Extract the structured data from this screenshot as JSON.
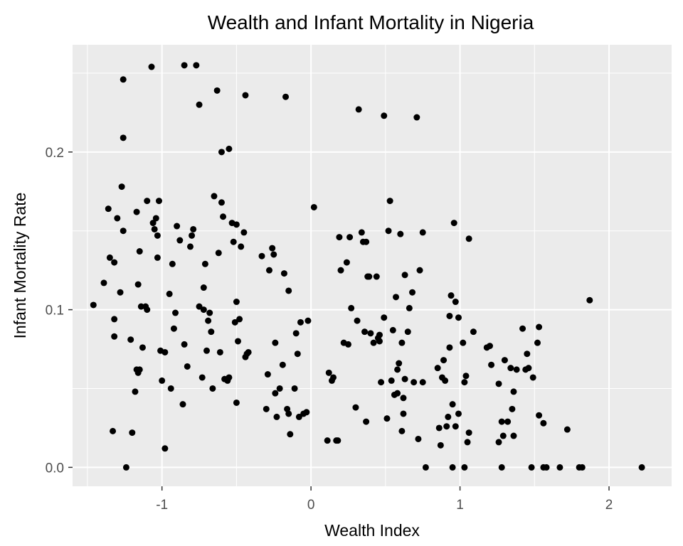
{
  "chart_data": {
    "type": "scatter",
    "title": "Wealth and Infant Mortality in Nigeria",
    "xlabel": "Wealth Index",
    "ylabel": "Infant Mortality Rate",
    "xlim": [
      -1.6,
      2.42
    ],
    "ylim": [
      -0.012,
      0.268
    ],
    "x_ticks": [
      -1,
      0,
      1,
      2
    ],
    "x_tick_labels": [
      "-1",
      "0",
      "1",
      "2"
    ],
    "y_ticks": [
      0.0,
      0.1,
      0.2
    ],
    "y_tick_labels": [
      "0.0",
      "0.1",
      "0.2"
    ],
    "grid": true,
    "background": "#ebebeb",
    "grid_color": "#ffffff",
    "point_color": "#000000",
    "points": [
      [
        -1.46,
        0.103
      ],
      [
        -1.39,
        0.117
      ],
      [
        -1.36,
        0.164
      ],
      [
        -1.35,
        0.133
      ],
      [
        -1.32,
        0.13
      ],
      [
        -1.3,
        0.158
      ],
      [
        -1.28,
        0.111
      ],
      [
        -1.27,
        0.178
      ],
      [
        -1.26,
        0.15
      ],
      [
        -1.26,
        0.209
      ],
      [
        -1.26,
        0.246
      ],
      [
        -1.24,
        0.0
      ],
      [
        -1.21,
        0.081
      ],
      [
        -1.2,
        0.022
      ],
      [
        -1.32,
        0.083
      ],
      [
        -1.32,
        0.094
      ],
      [
        -1.33,
        0.023
      ],
      [
        -1.17,
        0.162
      ],
      [
        -1.16,
        0.116
      ],
      [
        -1.15,
        0.137
      ],
      [
        -1.14,
        0.102
      ],
      [
        -1.13,
        0.076
      ],
      [
        -1.1,
        0.1
      ],
      [
        -1.11,
        0.102
      ],
      [
        -1.1,
        0.169
      ],
      [
        -1.18,
        0.048
      ],
      [
        -1.17,
        0.062
      ],
      [
        -1.16,
        0.06
      ],
      [
        -1.15,
        0.062
      ],
      [
        -1.07,
        0.254
      ],
      [
        -1.06,
        0.155
      ],
      [
        -1.05,
        0.151
      ],
      [
        -1.04,
        0.158
      ],
      [
        -1.03,
        0.147
      ],
      [
        -1.02,
        0.169
      ],
      [
        -1.03,
        0.133
      ],
      [
        -1.01,
        0.074
      ],
      [
        -1.0,
        0.055
      ],
      [
        -0.98,
        0.073
      ],
      [
        -0.98,
        0.012
      ],
      [
        -0.95,
        0.11
      ],
      [
        -0.94,
        0.05
      ],
      [
        -0.93,
        0.129
      ],
      [
        -0.92,
        0.088
      ],
      [
        -0.91,
        0.098
      ],
      [
        -0.9,
        0.153
      ],
      [
        -0.88,
        0.144
      ],
      [
        -0.86,
        0.04
      ],
      [
        -0.85,
        0.078
      ],
      [
        -0.85,
        0.255
      ],
      [
        -0.83,
        0.064
      ],
      [
        -0.81,
        0.14
      ],
      [
        -0.8,
        0.147
      ],
      [
        -0.79,
        0.151
      ],
      [
        -0.77,
        0.255
      ],
      [
        -0.75,
        0.102
      ],
      [
        -0.75,
        0.23
      ],
      [
        -0.73,
        0.057
      ],
      [
        -0.72,
        0.1
      ],
      [
        -0.72,
        0.114
      ],
      [
        -0.71,
        0.129
      ],
      [
        -0.7,
        0.074
      ],
      [
        -0.69,
        0.093
      ],
      [
        -0.68,
        0.098
      ],
      [
        -0.67,
        0.086
      ],
      [
        -0.66,
        0.05
      ],
      [
        -0.65,
        0.172
      ],
      [
        -0.63,
        0.239
      ],
      [
        -0.62,
        0.136
      ],
      [
        -0.61,
        0.073
      ],
      [
        -0.6,
        0.168
      ],
      [
        -0.6,
        0.2
      ],
      [
        -0.59,
        0.159
      ],
      [
        -0.58,
        0.056
      ],
      [
        -0.56,
        0.055
      ],
      [
        -0.55,
        0.057
      ],
      [
        -0.55,
        0.202
      ],
      [
        -0.53,
        0.155
      ],
      [
        -0.52,
        0.143
      ],
      [
        -0.51,
        0.092
      ],
      [
        -0.5,
        0.105
      ],
      [
        -0.5,
        0.041
      ],
      [
        -0.5,
        0.154
      ],
      [
        -0.49,
        0.08
      ],
      [
        -0.48,
        0.094
      ],
      [
        -0.47,
        0.14
      ],
      [
        -0.45,
        0.149
      ],
      [
        -0.44,
        0.236
      ],
      [
        -0.44,
        0.07
      ],
      [
        -0.43,
        0.072
      ],
      [
        -0.42,
        0.073
      ],
      [
        -0.33,
        0.134
      ],
      [
        -0.3,
        0.037
      ],
      [
        -0.29,
        0.059
      ],
      [
        -0.28,
        0.125
      ],
      [
        -0.26,
        0.139
      ],
      [
        -0.25,
        0.135
      ],
      [
        -0.24,
        0.047
      ],
      [
        -0.24,
        0.079
      ],
      [
        -0.23,
        0.032
      ],
      [
        -0.21,
        0.05
      ],
      [
        -0.19,
        0.065
      ],
      [
        -0.18,
        0.123
      ],
      [
        -0.16,
        0.037
      ],
      [
        -0.15,
        0.112
      ],
      [
        -0.15,
        0.034
      ],
      [
        -0.14,
        0.021
      ],
      [
        -0.11,
        0.05
      ],
      [
        -0.1,
        0.085
      ],
      [
        -0.09,
        0.072
      ],
      [
        -0.08,
        0.032
      ],
      [
        -0.07,
        0.092
      ],
      [
        -0.05,
        0.034
      ],
      [
        -0.03,
        0.035
      ],
      [
        -0.02,
        0.093
      ],
      [
        -0.17,
        0.235
      ],
      [
        0.02,
        0.165
      ],
      [
        0.11,
        0.017
      ],
      [
        0.12,
        0.06
      ],
      [
        0.14,
        0.055
      ],
      [
        0.15,
        0.057
      ],
      [
        0.17,
        0.017
      ],
      [
        0.18,
        0.017
      ],
      [
        0.19,
        0.146
      ],
      [
        0.2,
        0.125
      ],
      [
        0.22,
        0.079
      ],
      [
        0.24,
        0.13
      ],
      [
        0.25,
        0.078
      ],
      [
        0.26,
        0.146
      ],
      [
        0.27,
        0.101
      ],
      [
        0.3,
        0.038
      ],
      [
        0.31,
        0.093
      ],
      [
        0.32,
        0.227
      ],
      [
        0.34,
        0.149
      ],
      [
        0.35,
        0.143
      ],
      [
        0.36,
        0.086
      ],
      [
        0.37,
        0.143
      ],
      [
        0.37,
        0.029
      ],
      [
        0.38,
        0.121
      ],
      [
        0.39,
        0.121
      ],
      [
        0.4,
        0.085
      ],
      [
        0.42,
        0.079
      ],
      [
        0.44,
        0.121
      ],
      [
        0.45,
        0.082
      ],
      [
        0.46,
        0.08
      ],
      [
        0.46,
        0.084
      ],
      [
        0.47,
        0.054
      ],
      [
        0.49,
        0.095
      ],
      [
        0.49,
        0.223
      ],
      [
        0.51,
        0.031
      ],
      [
        0.52,
        0.15
      ],
      [
        0.53,
        0.169
      ],
      [
        0.54,
        0.055
      ],
      [
        0.55,
        0.087
      ],
      [
        0.56,
        0.046
      ],
      [
        0.57,
        0.108
      ],
      [
        0.58,
        0.047
      ],
      [
        0.58,
        0.062
      ],
      [
        0.59,
        0.066
      ],
      [
        0.6,
        0.148
      ],
      [
        0.61,
        0.023
      ],
      [
        0.61,
        0.079
      ],
      [
        0.62,
        0.044
      ],
      [
        0.62,
        0.034
      ],
      [
        0.63,
        0.122
      ],
      [
        0.63,
        0.056
      ],
      [
        0.65,
        0.086
      ],
      [
        0.66,
        0.101
      ],
      [
        0.68,
        0.111
      ],
      [
        0.69,
        0.054
      ],
      [
        0.71,
        0.222
      ],
      [
        0.72,
        0.018
      ],
      [
        0.73,
        0.125
      ],
      [
        0.75,
        0.054
      ],
      [
        0.75,
        0.149
      ],
      [
        0.77,
        0.0
      ],
      [
        0.85,
        0.063
      ],
      [
        0.86,
        0.025
      ],
      [
        0.87,
        0.014
      ],
      [
        0.88,
        0.057
      ],
      [
        0.89,
        0.068
      ],
      [
        0.9,
        0.055
      ],
      [
        0.91,
        0.026
      ],
      [
        0.92,
        0.032
      ],
      [
        0.93,
        0.096
      ],
      [
        0.93,
        0.076
      ],
      [
        0.94,
        0.109
      ],
      [
        0.95,
        0.04
      ],
      [
        0.95,
        0.0
      ],
      [
        0.96,
        0.155
      ],
      [
        0.97,
        0.105
      ],
      [
        0.97,
        0.026
      ],
      [
        0.99,
        0.095
      ],
      [
        0.99,
        0.034
      ],
      [
        1.02,
        0.079
      ],
      [
        1.03,
        0.0
      ],
      [
        1.03,
        0.054
      ],
      [
        1.04,
        0.058
      ],
      [
        1.05,
        0.016
      ],
      [
        1.06,
        0.145
      ],
      [
        1.06,
        0.022
      ],
      [
        1.09,
        0.086
      ],
      [
        1.18,
        0.076
      ],
      [
        1.2,
        0.077
      ],
      [
        1.21,
        0.065
      ],
      [
        1.26,
        0.053
      ],
      [
        1.26,
        0.016
      ],
      [
        1.28,
        0.0
      ],
      [
        1.28,
        0.029
      ],
      [
        1.29,
        0.02
      ],
      [
        1.3,
        0.068
      ],
      [
        1.32,
        0.029
      ],
      [
        1.34,
        0.063
      ],
      [
        1.35,
        0.037
      ],
      [
        1.36,
        0.048
      ],
      [
        1.36,
        0.02
      ],
      [
        1.38,
        0.062
      ],
      [
        1.42,
        0.088
      ],
      [
        1.44,
        0.062
      ],
      [
        1.45,
        0.072
      ],
      [
        1.46,
        0.063
      ],
      [
        1.48,
        0.0
      ],
      [
        1.49,
        0.057
      ],
      [
        1.52,
        0.079
      ],
      [
        1.53,
        0.089
      ],
      [
        1.53,
        0.033
      ],
      [
        1.56,
        0.028
      ],
      [
        1.56,
        0.0
      ],
      [
        1.58,
        0.0
      ],
      [
        1.67,
        0.0
      ],
      [
        1.72,
        0.024
      ],
      [
        1.8,
        0.0
      ],
      [
        1.82,
        0.0
      ],
      [
        1.87,
        0.106
      ],
      [
        2.22,
        0.0
      ]
    ]
  }
}
